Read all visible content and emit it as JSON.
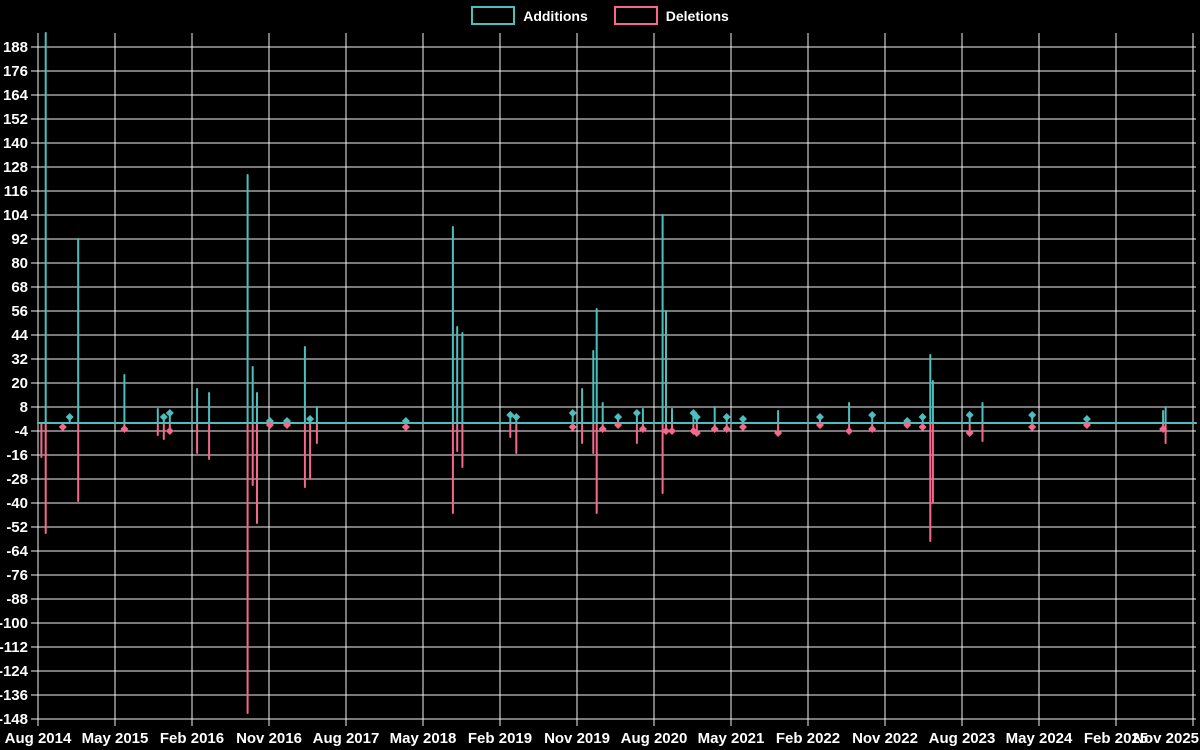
{
  "page": {
    "background": "#000000",
    "text_color": "#ffffff",
    "grid_color": "#f2f2f2"
  },
  "chart_data": {
    "type": "line",
    "title": "",
    "legend_position": "top-center",
    "grid": true,
    "x_axis": {
      "tick_labels": [
        "Aug 2014",
        "May 2015",
        "Feb 2016",
        "Nov 2016",
        "Aug 2017",
        "May 2018",
        "Feb 2019",
        "Nov 2019",
        "Aug 2020",
        "May 2021",
        "Feb 2022",
        "Nov 2022",
        "Aug 2023",
        "May 2024",
        "Feb 2025",
        "Nov 2025"
      ],
      "months_per_tick": 9
    },
    "y_axis": {
      "ticks": [
        188,
        176,
        164,
        152,
        140,
        128,
        116,
        104,
        92,
        80,
        68,
        56,
        44,
        32,
        20,
        8,
        -4,
        -16,
        -28,
        -40,
        -52,
        -64,
        -76,
        -88,
        -100,
        -112,
        -124,
        -136,
        -148
      ],
      "min": -150,
      "max": 195
    },
    "series": [
      {
        "name": "Additions",
        "color": "#4dbebe"
      },
      {
        "name": "Deletions",
        "color": "#f4698b"
      }
    ],
    "m_unit": "months since Aug 2014",
    "points": [
      {
        "m": 0.4,
        "additions": 0,
        "deletions": -17
      },
      {
        "m": 0.9,
        "additions": 195,
        "deletions": -55
      },
      {
        "m": 2.9,
        "additions": 0,
        "deletions": -2
      },
      {
        "m": 3.7,
        "additions": 3,
        "deletions": 0
      },
      {
        "m": 4.7,
        "additions": 92,
        "deletions": -39
      },
      {
        "m": 10.1,
        "additions": 24,
        "deletions": -3
      },
      {
        "m": 14.0,
        "additions": 7,
        "deletions": -6
      },
      {
        "m": 14.7,
        "additions": 3,
        "deletions": -8
      },
      {
        "m": 15.4,
        "additions": 5,
        "deletions": -4
      },
      {
        "m": 18.6,
        "additions": 17,
        "deletions": -15
      },
      {
        "m": 20.0,
        "additions": 15,
        "deletions": -18
      },
      {
        "m": 24.5,
        "additions": 124,
        "deletions": -145
      },
      {
        "m": 25.1,
        "additions": 28,
        "deletions": -31
      },
      {
        "m": 25.6,
        "additions": 15,
        "deletions": -50
      },
      {
        "m": 27.1,
        "additions": 1,
        "deletions": -1
      },
      {
        "m": 29.1,
        "additions": 1,
        "deletions": -1
      },
      {
        "m": 31.2,
        "additions": 38,
        "deletions": -32
      },
      {
        "m": 31.8,
        "additions": 2,
        "deletions": -28
      },
      {
        "m": 32.6,
        "additions": 8,
        "deletions": -10
      },
      {
        "m": 43.0,
        "additions": 1,
        "deletions": -2
      },
      {
        "m": 48.5,
        "additions": 98,
        "deletions": -45
      },
      {
        "m": 49.0,
        "additions": 48,
        "deletions": -14
      },
      {
        "m": 49.6,
        "additions": 45,
        "deletions": -22
      },
      {
        "m": 55.2,
        "additions": 4,
        "deletions": -7
      },
      {
        "m": 55.9,
        "additions": 3,
        "deletions": -15
      },
      {
        "m": 62.5,
        "additions": 5,
        "deletions": -2
      },
      {
        "m": 63.6,
        "additions": 17,
        "deletions": -10
      },
      {
        "m": 64.9,
        "additions": 36,
        "deletions": -15
      },
      {
        "m": 65.3,
        "additions": 57,
        "deletions": -45
      },
      {
        "m": 66.0,
        "additions": 10,
        "deletions": -3
      },
      {
        "m": 67.8,
        "additions": 3,
        "deletions": -1
      },
      {
        "m": 70.0,
        "additions": 5,
        "deletions": -10
      },
      {
        "m": 70.7,
        "additions": 7,
        "deletions": -3
      },
      {
        "m": 73.0,
        "additions": 104,
        "deletions": -35
      },
      {
        "m": 73.4,
        "additions": 56,
        "deletions": -4
      },
      {
        "m": 74.1,
        "additions": 7,
        "deletions": -4
      },
      {
        "m": 76.6,
        "additions": 5,
        "deletions": -4
      },
      {
        "m": 77.0,
        "additions": 3,
        "deletions": -5
      },
      {
        "m": 79.1,
        "additions": 8,
        "deletions": -3
      },
      {
        "m": 80.5,
        "additions": 3,
        "deletions": -3
      },
      {
        "m": 82.4,
        "additions": 2,
        "deletions": -2
      },
      {
        "m": 86.5,
        "additions": 6,
        "deletions": -5
      },
      {
        "m": 91.4,
        "additions": 3,
        "deletions": -1
      },
      {
        "m": 94.8,
        "additions": 10,
        "deletions": -4
      },
      {
        "m": 97.5,
        "additions": 4,
        "deletions": -3
      },
      {
        "m": 101.6,
        "additions": 1,
        "deletions": -1
      },
      {
        "m": 103.4,
        "additions": 3,
        "deletions": -2
      },
      {
        "m": 104.3,
        "additions": 34,
        "deletions": -59
      },
      {
        "m": 104.6,
        "additions": 21,
        "deletions": -40
      },
      {
        "m": 108.9,
        "additions": 4,
        "deletions": -5
      },
      {
        "m": 110.4,
        "additions": 10,
        "deletions": -9
      },
      {
        "m": 116.2,
        "additions": 4,
        "deletions": -2
      },
      {
        "m": 122.6,
        "additions": 2,
        "deletions": -1
      },
      {
        "m": 131.5,
        "additions": 6,
        "deletions": -3
      },
      {
        "m": 131.8,
        "additions": 8,
        "deletions": -10
      }
    ]
  }
}
